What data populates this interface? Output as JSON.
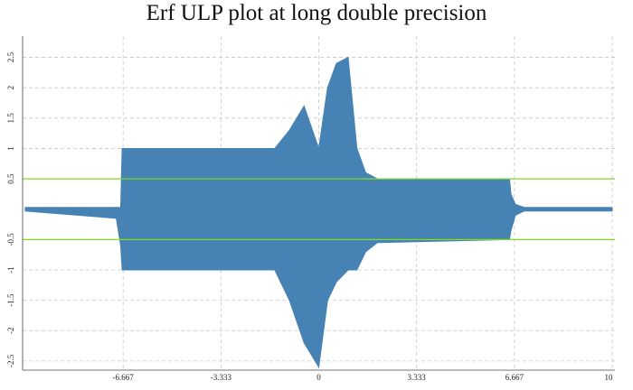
{
  "chart_data": {
    "type": "band",
    "title": "Erf ULP plot at long double precision",
    "x": [
      -10,
      -6.9,
      -6.75,
      -6.7,
      -6.65,
      -3.0,
      -1.5,
      -1.0,
      -0.5,
      0,
      0.3,
      0.6,
      1.0,
      1.3,
      1.6,
      2.0,
      6.5,
      6.55,
      6.7,
      7.0,
      10
    ],
    "upper": [
      0.03,
      0.03,
      0.03,
      1.0,
      1.0,
      1.0,
      1.0,
      1.3,
      1.7,
      1.0,
      2.0,
      2.4,
      2.5,
      1.0,
      0.6,
      0.5,
      0.5,
      0.25,
      0.08,
      0.03,
      0.03
    ],
    "lower": [
      -0.03,
      -0.15,
      -0.6,
      -1.0,
      -1.0,
      -1.0,
      -1.0,
      -1.5,
      -2.2,
      -2.6,
      -1.5,
      -1.2,
      -1.0,
      -1.0,
      -0.7,
      -0.55,
      -0.5,
      -0.35,
      -0.1,
      -0.03,
      -0.03
    ],
    "color": "#4682b4",
    "reference_lines": [
      0.5,
      -0.5
    ],
    "reference_color": "#7fdc1e",
    "xlim": [
      -10,
      10
    ],
    "ylim": [
      -2.65,
      2.85
    ],
    "xticks": [
      -6.667,
      -3.333,
      0,
      3.333,
      6.667,
      10
    ],
    "yticks": [
      -2.5,
      -2,
      -1.5,
      -1,
      -0.5,
      0.5,
      1,
      1.5,
      2,
      2.5
    ],
    "grid": true
  }
}
